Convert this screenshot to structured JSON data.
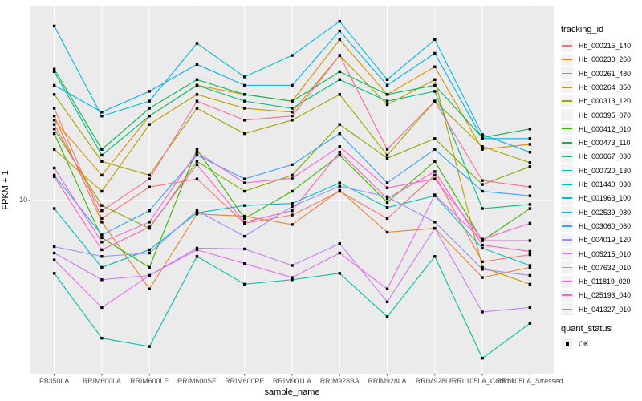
{
  "axes": {
    "x_title": "sample_name",
    "y_title": "FPKM + 1",
    "y_tick": "10"
  },
  "legend": {
    "tracking_title": "tracking_id",
    "quant_title": "quant_status",
    "quant_ok_label": "OK"
  },
  "style": {
    "panel_bg": "#ebebeb",
    "grid_color": "#ffffff",
    "point_color": "#000000",
    "tick_color": "#333333"
  },
  "chart_data": {
    "type": "line",
    "title": "",
    "xlabel": "sample_name",
    "ylabel": "FPKM + 1",
    "y_scale": "log10",
    "y_ticks": [
      10
    ],
    "grid": "major-only",
    "legend_position": "right",
    "point_shape": "filled-black-square (quant_status = OK)",
    "categories": [
      "PB350LA",
      "RRIM600LA",
      "RRIM600LE",
      "RRIM600SE",
      "RRIM600PE",
      "RRIM901LA",
      "RRIM928BA",
      "RRIM928LA",
      "RRIM928LE",
      "RRII105LA_Control",
      "RRII105LA_Stressed"
    ],
    "series": [
      {
        "name": "Hb_000215_140",
        "color": "#F8766D",
        "values": [
          26,
          8.3,
          11.5,
          12.5,
          7.9,
          8.6,
          11,
          8.3,
          13,
          5.3,
          5.7
        ]
      },
      {
        "name": "Hb_000230_260",
        "color": "#EA8331",
        "values": [
          24,
          8.0,
          4.0,
          8.7,
          8.5,
          7.8,
          11.1,
          7.2,
          7.5,
          4.5,
          5.0
        ]
      },
      {
        "name": "Hb_000261_480",
        "color": "#D89000",
        "values": [
          23,
          13,
          24,
          33,
          30,
          28,
          53,
          30,
          40,
          17,
          17.9
        ]
      },
      {
        "name": "Hb_000264_350",
        "color": "#C09B00",
        "values": [
          17,
          11,
          22,
          30,
          26,
          25,
          45,
          27,
          35,
          5.0,
          4.2
        ]
      },
      {
        "name": "Hb_000313_120",
        "color": "#A3A500",
        "values": [
          30,
          15,
          13,
          26,
          20,
          23,
          30,
          16,
          28,
          17.5,
          14.8
        ]
      },
      {
        "name": "Hb_000395_070",
        "color": "#7CAE00",
        "values": [
          21,
          9.5,
          7.5,
          15,
          11,
          13,
          22,
          15.5,
          19,
          11.8,
          14.2
        ]
      },
      {
        "name": "Hb_000412_010",
        "color": "#39B600",
        "values": [
          20,
          6.8,
          5.0,
          17,
          8.3,
          11,
          16,
          9.8,
          15,
          6.6,
          9.2
        ]
      },
      {
        "name": "Hb_000473_110",
        "color": "#00BB4E",
        "values": [
          39,
          17,
          26,
          35,
          30,
          28,
          38,
          30,
          33,
          19.2,
          21
        ]
      },
      {
        "name": "Hb_000667_030",
        "color": "#00BF7D",
        "values": [
          38,
          16,
          24,
          33,
          28,
          26,
          35,
          28,
          31,
          9.2,
          9.6
        ]
      },
      {
        "name": "Hb_000720_130",
        "color": "#00C1A3",
        "values": [
          4.7,
          2.4,
          2.2,
          5.6,
          4.2,
          4.4,
          4.7,
          3.0,
          5.6,
          1.95,
          2.8
        ]
      },
      {
        "name": "Hb_001440_030",
        "color": "#00BFC4",
        "values": [
          9.2,
          5.0,
          6.0,
          8.8,
          9.5,
          9.7,
          12,
          9.3,
          10.5,
          6.1,
          5.1
        ]
      },
      {
        "name": "Hb_001963_100",
        "color": "#00BAE0",
        "values": [
          61,
          24,
          28,
          51,
          36,
          45,
          64,
          35,
          53,
          19.8,
          16.5
        ]
      },
      {
        "name": "Hb_002539_080",
        "color": "#00B0F6",
        "values": [
          33,
          25,
          31,
          41,
          33,
          33,
          58,
          33,
          46,
          19,
          19
        ]
      },
      {
        "name": "Hb_003060_060",
        "color": "#35A2FF",
        "values": [
          13,
          7.0,
          9.0,
          16,
          12.5,
          14.5,
          20,
          12,
          17,
          11,
          10.5
        ]
      },
      {
        "name": "Hb_004019_120",
        "color": "#9590FF",
        "values": [
          6.2,
          5.6,
          5.8,
          9.0,
          6.9,
          9.4,
          11.6,
          10.4,
          8.0,
          4.9,
          4.6
        ]
      },
      {
        "name": "Hb_005215_010",
        "color": "#C77CFF",
        "values": [
          5.8,
          4.4,
          4.6,
          6.1,
          6.05,
          5.1,
          6.4,
          3.5,
          7.5,
          3.15,
          3.3
        ]
      },
      {
        "name": "Hb_007632_010",
        "color": "#E76BF3",
        "values": [
          5.4,
          3.3,
          4.6,
          6.0,
          5.2,
          4.5,
          5.8,
          4.0,
          10.6,
          6.6,
          6.6
        ]
      },
      {
        "name": "Hb_011819_020",
        "color": "#FA62DB",
        "values": [
          14,
          6.5,
          8.0,
          16.5,
          12,
          12.6,
          17.5,
          11.4,
          12.5,
          6.7,
          7.9
        ]
      },
      {
        "name": "Hb_025193_040",
        "color": "#FF62BC",
        "values": [
          12.8,
          6.0,
          7.6,
          14.5,
          8.0,
          9.0,
          16.5,
          10.2,
          13.5,
          6.3,
          5.9
        ]
      },
      {
        "name": "Hb_041327_010",
        "color": "#FF6A98",
        "values": [
          22,
          9.0,
          12.5,
          28,
          23,
          24,
          45,
          17,
          28,
          12.3,
          11.5
        ]
      }
    ]
  }
}
